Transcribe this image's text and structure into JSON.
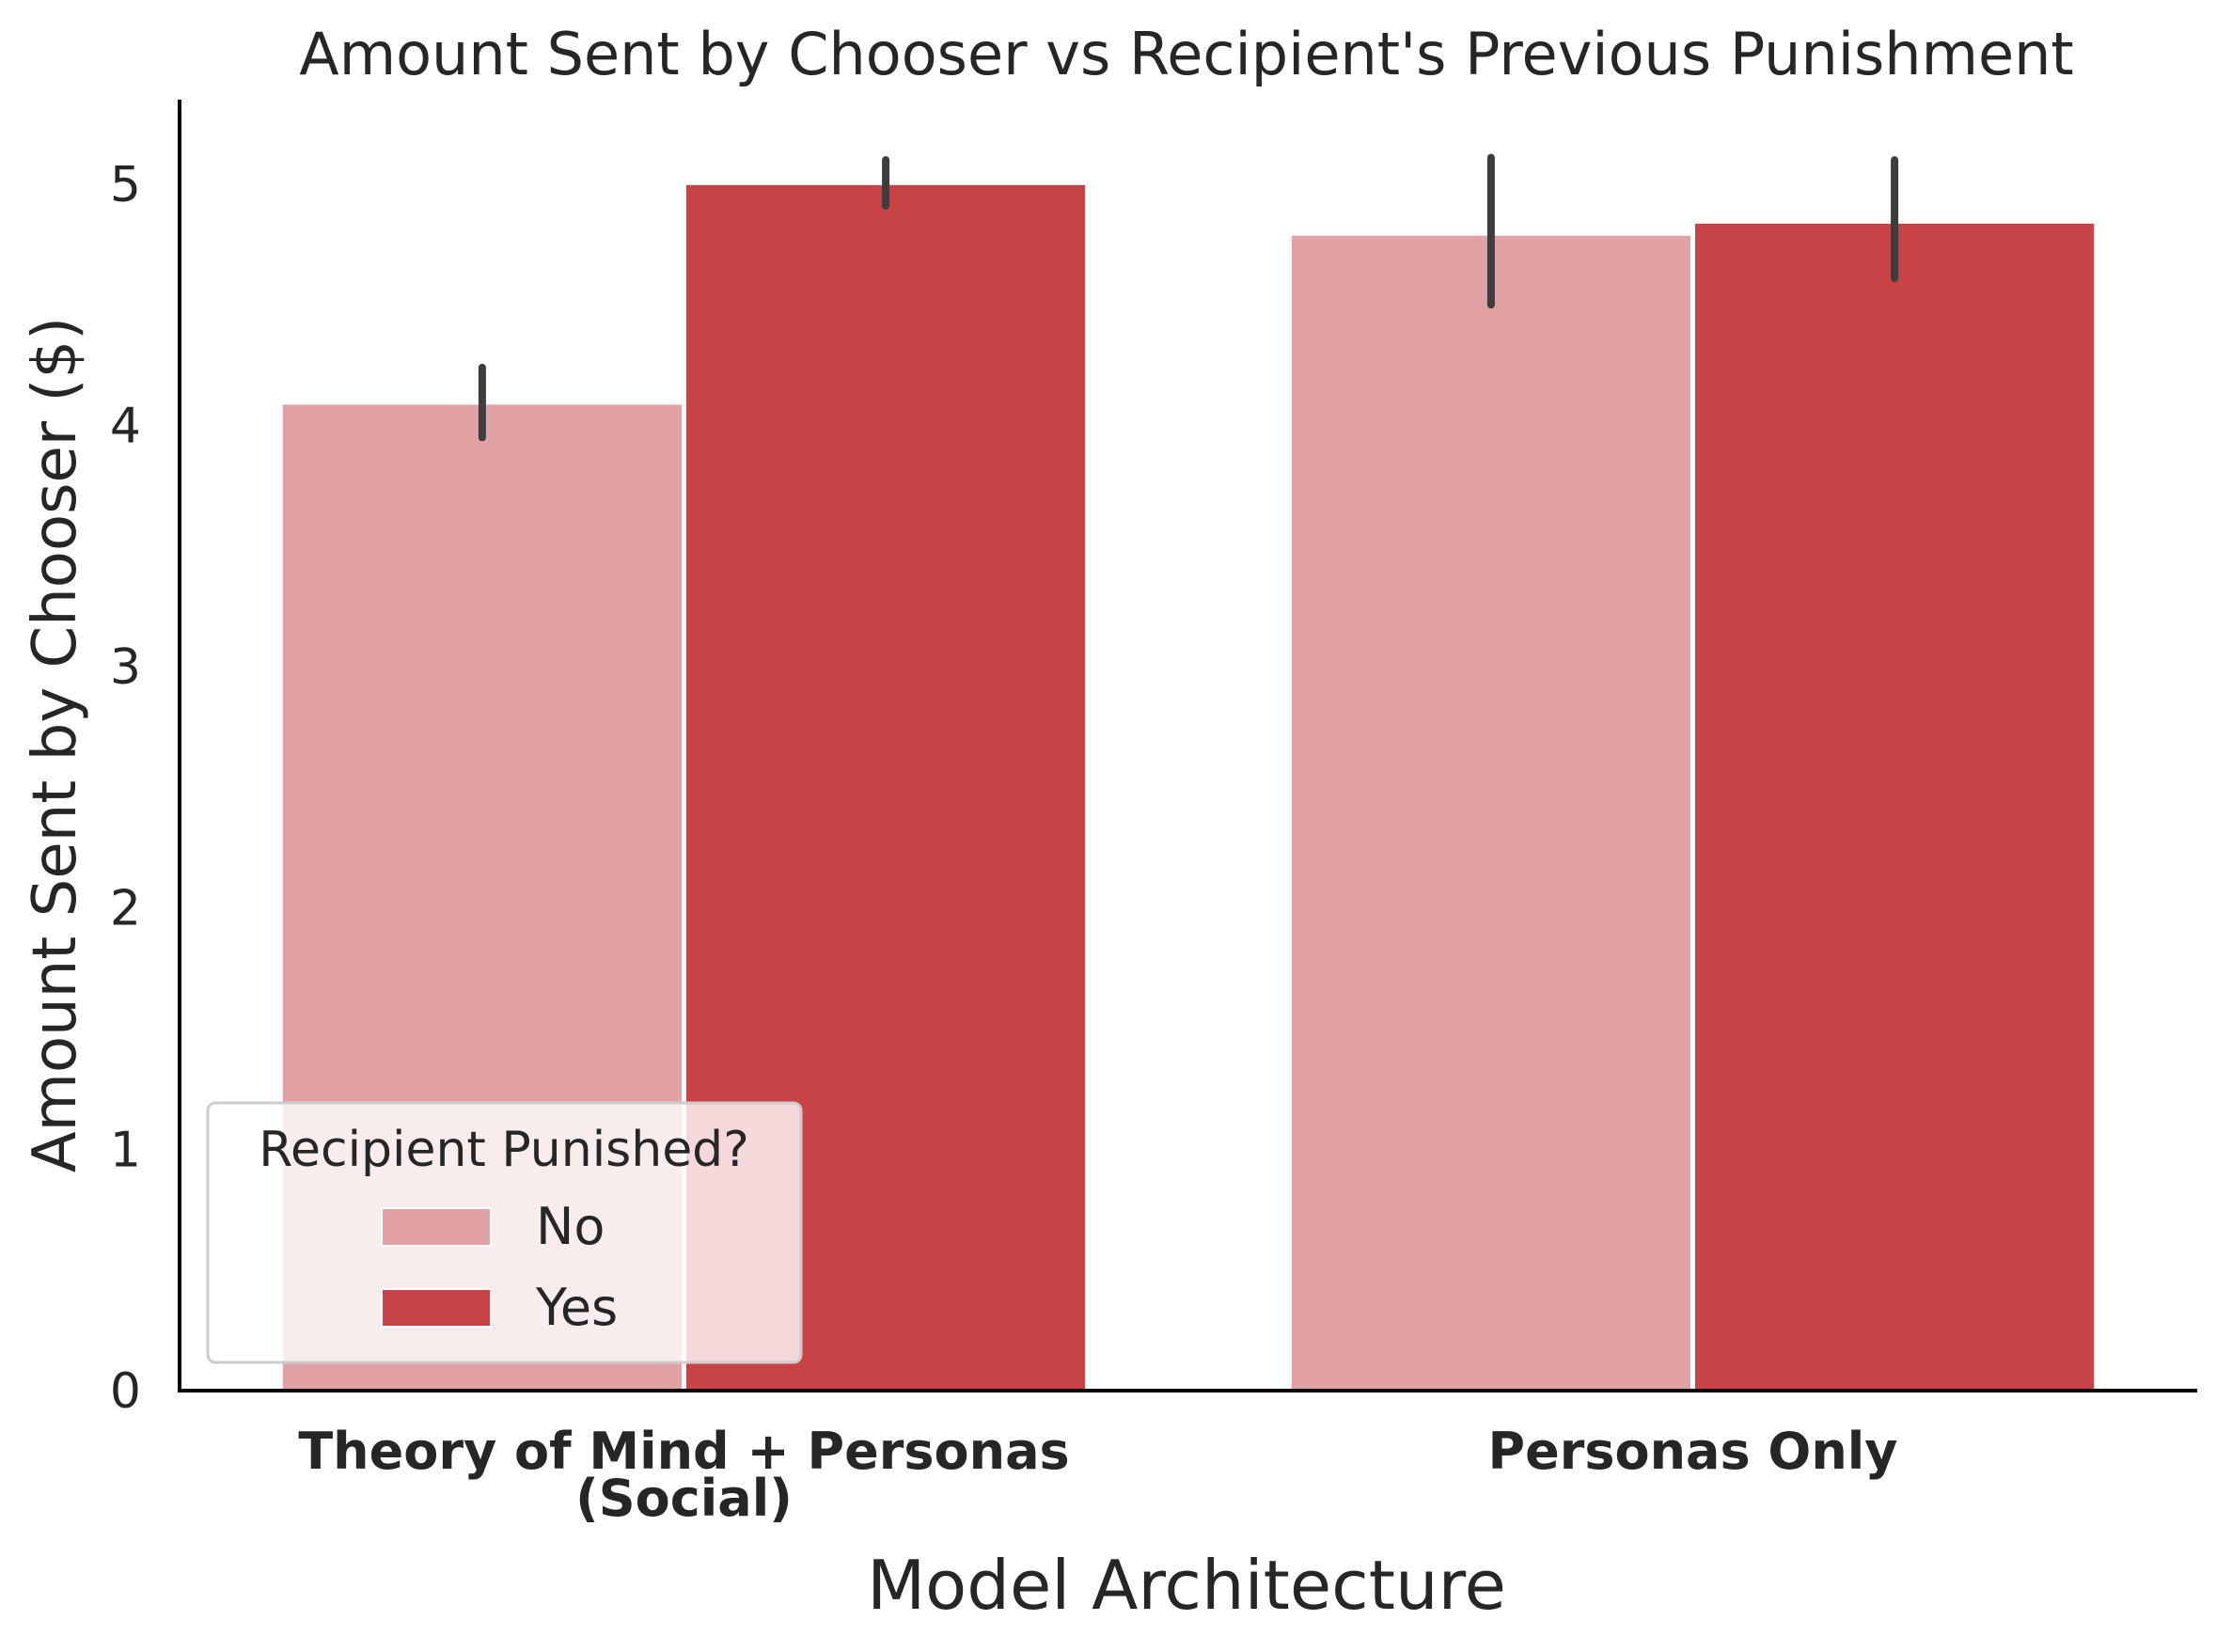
{
  "chart_data": {
    "type": "bar",
    "title": "Amount Sent by Chooser vs Recipient's Previous Punishment",
    "xlabel": "Model Architecture",
    "ylabel": "Amount Sent by Chooser ($)",
    "categories": [
      [
        "Theory of Mind + Personas",
        "(Social)"
      ],
      [
        "Personas Only"
      ]
    ],
    "ylim": [
      0,
      5.35
    ],
    "yticks": [
      0,
      1,
      2,
      3,
      4,
      5
    ],
    "legend": {
      "title": "Recipient Punished?",
      "placement": "lower-left"
    },
    "grid": false,
    "series": [
      {
        "name": "No",
        "color": "#e0a2a4",
        "values": [
          4.09,
          4.79
        ],
        "error_low": [
          3.95,
          4.5
        ],
        "error_high": [
          4.24,
          5.11
        ]
      },
      {
        "name": "Yes",
        "color": "#c74345",
        "values": [
          5.0,
          4.84
        ],
        "error_low": [
          4.91,
          4.61
        ],
        "error_high": [
          5.1,
          5.1
        ]
      }
    ]
  }
}
